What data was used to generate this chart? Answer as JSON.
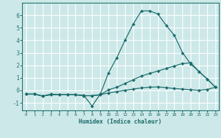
{
  "xlabel": "Humidex (Indice chaleur)",
  "bg_color": "#cde8e8",
  "grid_color": "#ffffff",
  "line_color": "#1a6b6b",
  "xlim": [
    -0.5,
    23.4
  ],
  "ylim": [
    -1.6,
    7.0
  ],
  "x": [
    0,
    1,
    2,
    3,
    4,
    5,
    6,
    7,
    8,
    9,
    10,
    11,
    12,
    13,
    14,
    15,
    16,
    17,
    18,
    19,
    20,
    21,
    22,
    23
  ],
  "line1": [
    -0.3,
    -0.3,
    -0.45,
    -0.3,
    -0.35,
    -0.35,
    -0.35,
    -0.4,
    -1.25,
    -0.3,
    1.4,
    2.6,
    4.0,
    5.3,
    6.35,
    6.35,
    6.1,
    5.2,
    4.4,
    3.0,
    2.1,
    1.5,
    0.9,
    0.25
  ],
  "line2": [
    -0.3,
    -0.3,
    -0.45,
    -0.35,
    -0.35,
    -0.35,
    -0.35,
    -0.42,
    -0.42,
    -0.35,
    0.05,
    0.25,
    0.55,
    0.85,
    1.15,
    1.35,
    1.55,
    1.75,
    1.95,
    2.15,
    2.2,
    1.5,
    0.9,
    0.25
  ],
  "line3": [
    -0.3,
    -0.3,
    -0.45,
    -0.35,
    -0.35,
    -0.35,
    -0.35,
    -0.42,
    -0.42,
    -0.35,
    -0.2,
    -0.1,
    0.0,
    0.1,
    0.2,
    0.25,
    0.28,
    0.22,
    0.15,
    0.1,
    0.05,
    0.0,
    0.08,
    0.25
  ],
  "xticks": [
    0,
    1,
    2,
    3,
    4,
    5,
    6,
    7,
    8,
    9,
    10,
    11,
    12,
    13,
    14,
    15,
    16,
    17,
    18,
    19,
    20,
    21,
    22,
    23
  ],
  "yticks": [
    -1,
    0,
    1,
    2,
    3,
    4,
    5,
    6
  ]
}
